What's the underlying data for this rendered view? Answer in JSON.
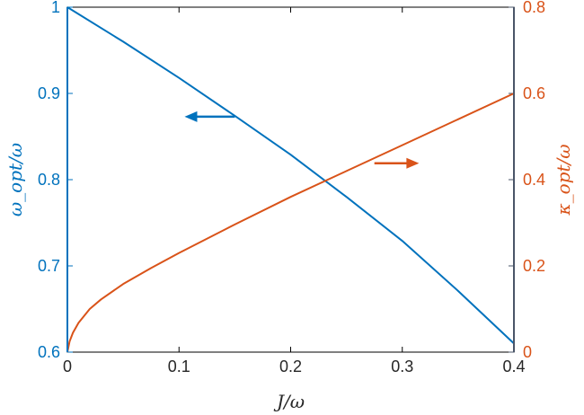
{
  "chart_data": {
    "type": "line",
    "xlabel": "J/ω",
    "ylabel_left": "ω_opt/ω",
    "ylabel_right": "κ_opt/ω",
    "xlim": [
      0,
      0.4
    ],
    "ylim_left": [
      0.6,
      1.0
    ],
    "ylim_right": [
      0,
      0.8
    ],
    "x_ticks": [
      "0",
      "0.1",
      "0.2",
      "0.3",
      "0.4"
    ],
    "y_ticks_left": [
      "0.6",
      "0.7",
      "0.8",
      "0.9",
      "1"
    ],
    "y_ticks_right": [
      "0",
      "0.2",
      "0.4",
      "0.6",
      "0.8"
    ],
    "grid": false,
    "colors": {
      "left": "#0072BD",
      "right": "#D95319",
      "axis_mid": "#4a5568",
      "box": "#000000"
    },
    "series": [
      {
        "axis": "left",
        "x": [
          0,
          0.05,
          0.1,
          0.15,
          0.2,
          0.25,
          0.3,
          0.35,
          0.4
        ],
        "y": [
          1.0,
          0.96,
          0.918,
          0.874,
          0.829,
          0.78,
          0.729,
          0.671,
          0.61
        ]
      },
      {
        "axis": "right",
        "x": [
          0,
          0.002,
          0.005,
          0.01,
          0.02,
          0.03,
          0.05,
          0.075,
          0.1,
          0.15,
          0.2,
          0.25,
          0.3,
          0.35,
          0.4
        ],
        "y": [
          0,
          0.025,
          0.045,
          0.068,
          0.1,
          0.122,
          0.158,
          0.195,
          0.23,
          0.296,
          0.36,
          0.42,
          0.48,
          0.54,
          0.6
        ]
      }
    ],
    "annotations": [
      {
        "type": "arrow",
        "direction": "left",
        "axis": "left",
        "x_from": 0.15,
        "x_to": 0.105,
        "y": 0.873,
        "color": "left"
      },
      {
        "type": "arrow",
        "direction": "right",
        "axis": "right",
        "x_from": 0.275,
        "x_to": 0.315,
        "y": 0.438,
        "color": "right"
      }
    ]
  }
}
